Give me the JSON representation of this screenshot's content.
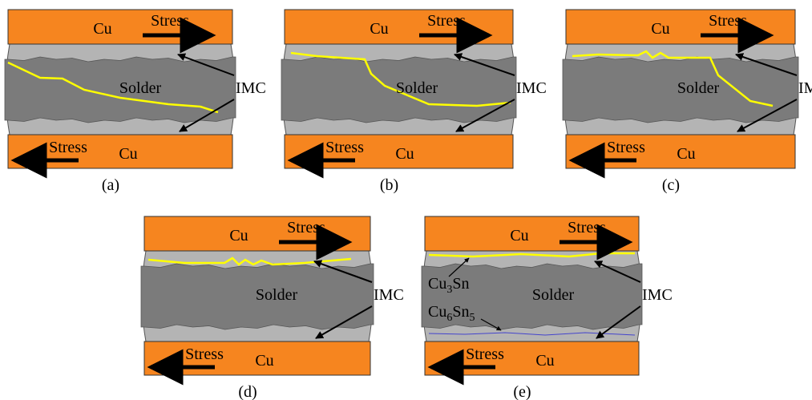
{
  "panels": [
    {
      "caption": "(a)",
      "top_label": "Cu",
      "top_stress": "Stress",
      "solder": "Solder",
      "imc": "IMC",
      "bottom_stress": "Stress",
      "bottom_label": "Cu"
    },
    {
      "caption": "(b)",
      "top_label": "Cu",
      "top_stress": "Stress",
      "solder": "Solder",
      "imc": "IMC",
      "bottom_stress": "Stress",
      "bottom_label": "Cu"
    },
    {
      "caption": "(c)",
      "top_label": "Cu",
      "top_stress": "Stress",
      "solder": "Solder",
      "imc": "IMC",
      "bottom_stress": "Stress",
      "bottom_label": "Cu"
    },
    {
      "caption": "(d)",
      "top_label": "Cu",
      "top_stress": "Stress",
      "solder": "Solder",
      "imc": "IMC",
      "bottom_stress": "Stress",
      "bottom_label": "Cu"
    },
    {
      "caption": "(e)",
      "top_label": "Cu",
      "top_stress": "Stress",
      "solder": "Solder",
      "imc": "IMC",
      "bottom_stress": "Stress",
      "bottom_label": "Cu",
      "phases": [
        [
          "Cu",
          "3",
          "Sn"
        ],
        [
          "Cu",
          "6",
          "Sn",
          "5"
        ]
      ]
    }
  ]
}
